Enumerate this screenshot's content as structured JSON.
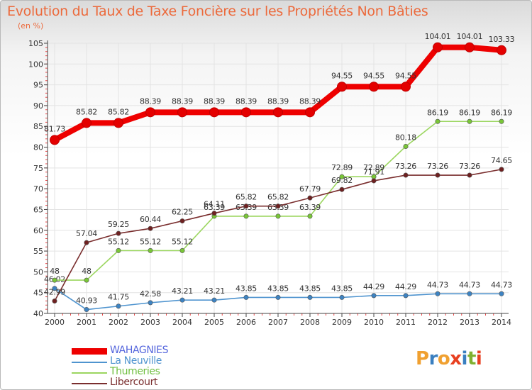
{
  "title": "Evolution du Taux de Taxe Foncière sur les Propriétés Non Bâties",
  "subtitle": "(en %)",
  "logo": {
    "text": "Proxiti",
    "letters": [
      "P",
      "r",
      "o",
      "x",
      "i",
      "t",
      "i"
    ],
    "colors": [
      "#f0a030",
      "#3a7fc0",
      "#f0a030",
      "#e84020",
      "#3a7fc0",
      "#80b030",
      "#e84020"
    ]
  },
  "chart_data": {
    "type": "line",
    "title": "Evolution du Taux de Taxe Foncière sur les Propriétés Non Bâties",
    "ylabel": "(en %)",
    "xlabel": "",
    "ylim": [
      40,
      105
    ],
    "yticks": [
      "40",
      "45",
      "50",
      "55",
      "60",
      "65",
      "70",
      "75",
      "80",
      "85",
      "90",
      "95",
      "100",
      "105"
    ],
    "x": [
      "2000",
      "2001",
      "2002",
      "2003",
      "2004",
      "2005",
      "2006",
      "2007",
      "2008",
      "2009",
      "2010",
      "2011",
      "2012",
      "2013",
      "2014"
    ],
    "grid": true,
    "legend": "bottom-left",
    "series": [
      {
        "name": "La Neuville",
        "color": "#4f94cf",
        "dot": "#3d83c2",
        "values": [
          46.02,
          40.93,
          41.75,
          42.58,
          43.21,
          43.21,
          43.85,
          43.85,
          43.85,
          43.85,
          44.29,
          44.29,
          44.73,
          44.73,
          44.73
        ],
        "labels": [
          "46.02",
          "40.93",
          "41.75",
          "42.58",
          "43.21",
          "43.21",
          "43.85",
          "43.85",
          "43.85",
          "43.85",
          "44.29",
          "44.29",
          "44.73",
          "44.73",
          "44.73"
        ]
      },
      {
        "name": "Thumeries",
        "color": "#9bd65f",
        "dot": "#79c637",
        "values": [
          48,
          48,
          55.12,
          55.12,
          55.12,
          63.39,
          63.39,
          63.39,
          63.39,
          72.89,
          72.89,
          80.18,
          86.19,
          86.19,
          86.19
        ],
        "labels": [
          "48",
          "48",
          "55.12",
          "55.12",
          "55.12",
          "63.39",
          "63.39",
          "63.39",
          "63.39",
          "72.89",
          "72.89",
          "80.18",
          "86.19",
          "86.19",
          "86.19"
        ]
      },
      {
        "name": "Libercourt",
        "color": "#7a2e2e",
        "dot": "#6e2020",
        "values": [
          42.99,
          57.04,
          59.25,
          60.44,
          62.25,
          64.11,
          65.82,
          65.82,
          67.79,
          69.82,
          71.91,
          73.26,
          73.26,
          73.26,
          74.65
        ],
        "labels": [
          "42.99",
          "57.04",
          "59.25",
          "60.44",
          "62.25",
          "64.11",
          "65.82",
          "65.82",
          "67.79",
          "69.82",
          "71.91",
          "73.26",
          "73.26",
          "73.26",
          "74.65"
        ]
      },
      {
        "name": "WAHAGNIES",
        "color": "#ee0000",
        "dot": "#e40000",
        "values": [
          81.73,
          85.82,
          85.82,
          88.39,
          88.39,
          88.39,
          88.39,
          88.39,
          88.39,
          94.55,
          94.55,
          94.55,
          104.01,
          104.01,
          103.33
        ],
        "labels": [
          "81.73",
          "85.82",
          "85.82",
          "88.39",
          "88.39",
          "88.39",
          "88.39",
          "88.39",
          "88.39",
          "94.55",
          "94.55",
          "94.55",
          "104.01",
          "104.01",
          "103.33"
        ]
      }
    ]
  },
  "legend_items": [
    {
      "name": "WAHAGNIES",
      "color": "#ee0000"
    },
    {
      "name": "La Neuville",
      "color": "#4f94cf"
    },
    {
      "name": "Thumeries",
      "color": "#9bd65f"
    },
    {
      "name": "Libercourt",
      "color": "#7a2e2e"
    }
  ]
}
